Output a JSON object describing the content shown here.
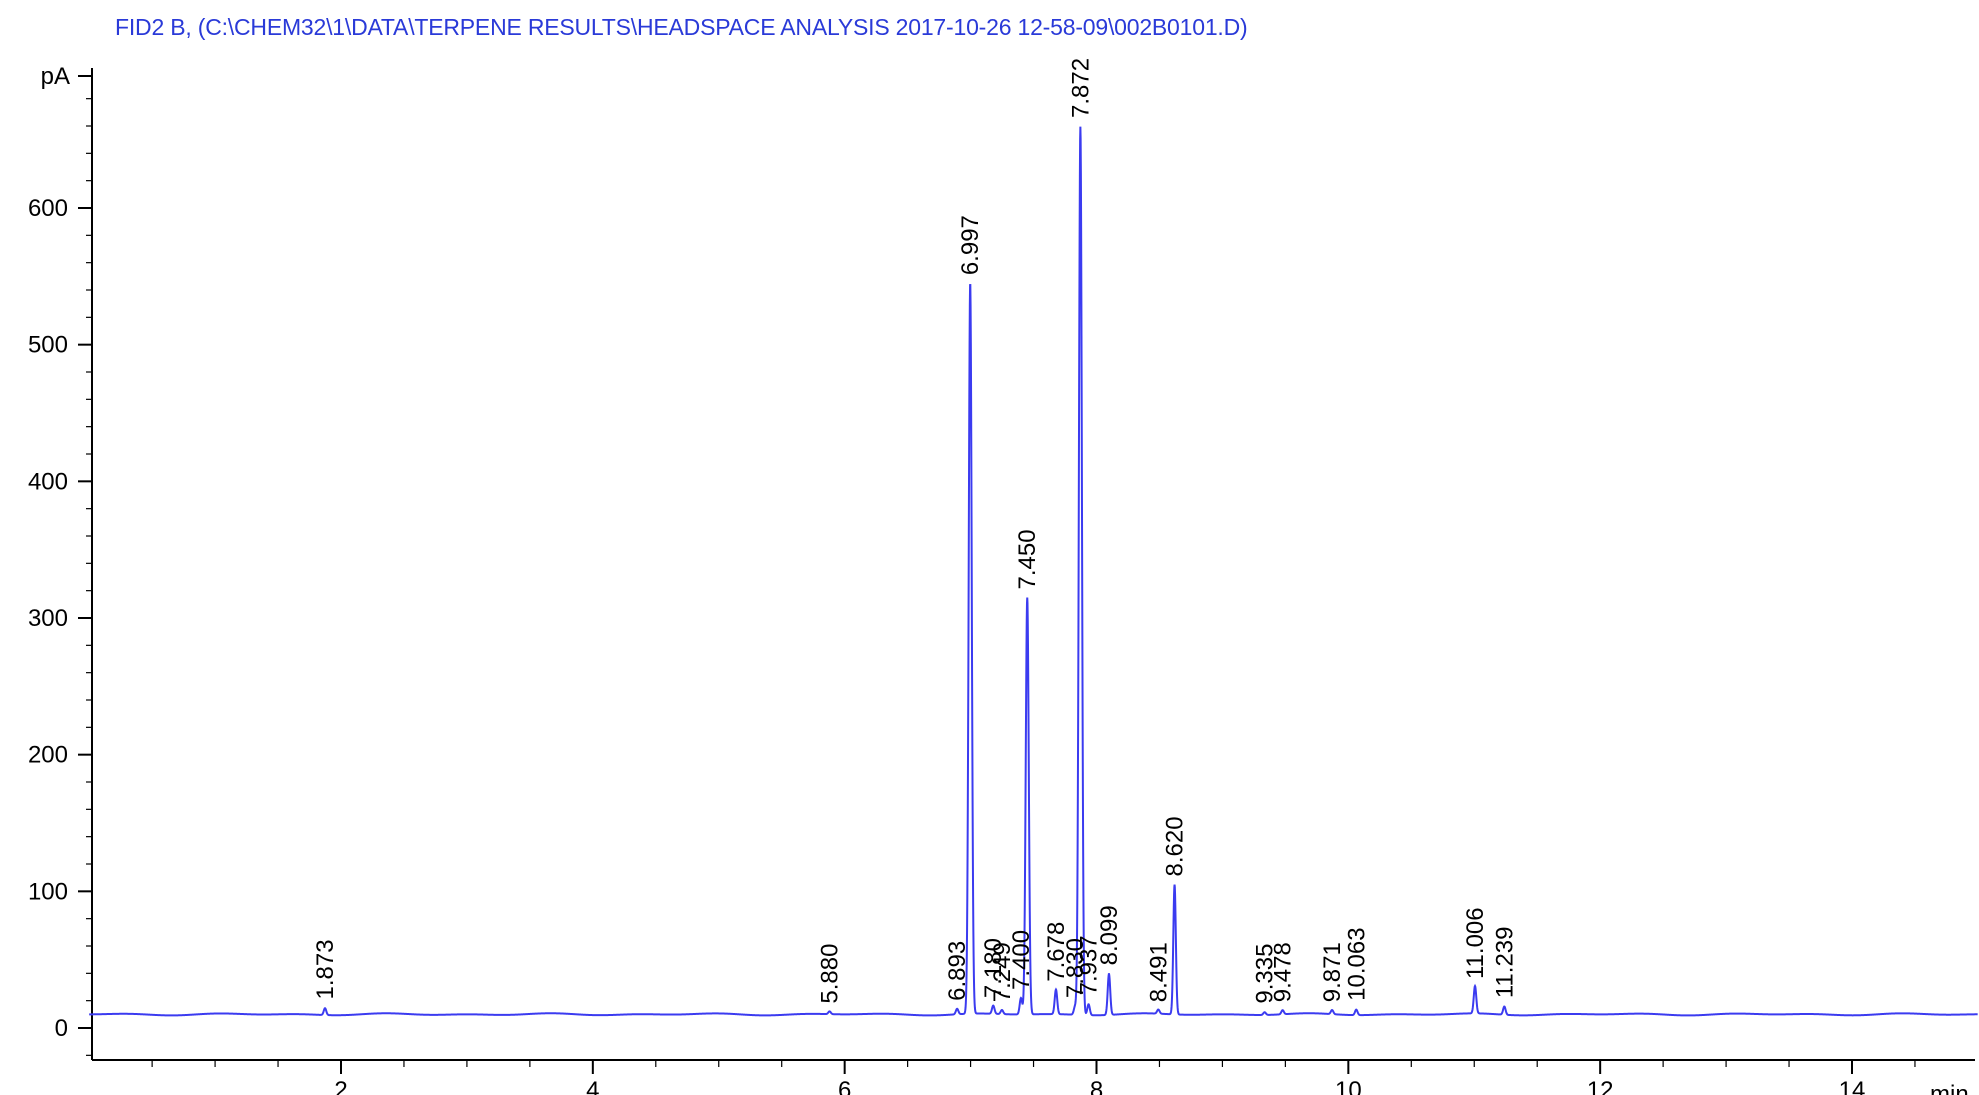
{
  "chart_data": {
    "type": "line",
    "title": "FID2 B,  (C:\\CHEM32\\1\\DATA\\TERPENE RESULTS\\HEADSPACE ANALYSIS 2017-10-26 12-58-09\\002B0101.D)",
    "ylabel": "pA",
    "xlabel": "min",
    "xlim": [
      0,
      15
    ],
    "ylim": [
      -20,
      700
    ],
    "x_ticks": [
      2,
      4,
      6,
      8,
      10,
      12,
      14
    ],
    "y_ticks": [
      0,
      100,
      200,
      300,
      400,
      500,
      600
    ],
    "baseline": 10,
    "series": [
      {
        "color": "#3b3bf0",
        "peaks": [
          {
            "x": 1.873,
            "y": 15,
            "label": "1.873"
          },
          {
            "x": 5.88,
            "y": 12,
            "label": "5.880"
          },
          {
            "x": 6.893,
            "y": 14,
            "label": "6.893"
          },
          {
            "x": 6.997,
            "y": 545,
            "label": "6.997"
          },
          {
            "x": 7.18,
            "y": 16,
            "label": "7.180"
          },
          {
            "x": 7.249,
            "y": 13,
            "label": "7.249"
          },
          {
            "x": 7.4,
            "y": 22,
            "label": "7.400"
          },
          {
            "x": 7.45,
            "y": 315,
            "label": "7.450"
          },
          {
            "x": 7.678,
            "y": 28,
            "label": "7.678"
          },
          {
            "x": 7.83,
            "y": 16,
            "label": "7.830"
          },
          {
            "x": 7.872,
            "y": 660,
            "label": "7.872"
          },
          {
            "x": 7.937,
            "y": 18,
            "label": "7.937"
          },
          {
            "x": 8.099,
            "y": 40,
            "label": "8.099"
          },
          {
            "x": 8.491,
            "y": 13,
            "label": "8.491"
          },
          {
            "x": 8.62,
            "y": 105,
            "label": "8.620"
          },
          {
            "x": 9.335,
            "y": 12,
            "label": "9.335"
          },
          {
            "x": 9.478,
            "y": 13,
            "label": "9.478"
          },
          {
            "x": 9.871,
            "y": 13,
            "label": "9.871"
          },
          {
            "x": 10.063,
            "y": 14,
            "label": "10.063"
          },
          {
            "x": 11.006,
            "y": 30,
            "label": "11.006"
          },
          {
            "x": 11.239,
            "y": 16,
            "label": "11.239"
          }
        ]
      }
    ],
    "grid": false,
    "legend": "none"
  }
}
